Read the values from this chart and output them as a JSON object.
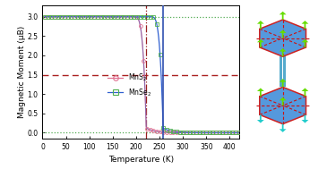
{
  "title": "",
  "xlabel": "Temperature (K)",
  "ylabel": "Magnetic Moment (μB)",
  "xlim": [
    0,
    420
  ],
  "ylim": [
    -0.15,
    3.3
  ],
  "yticks": [
    0.0,
    0.5,
    1.0,
    1.5,
    2.0,
    2.5,
    3.0
  ],
  "xticks": [
    0,
    50,
    100,
    150,
    200,
    250,
    300,
    350,
    400
  ],
  "mns2_tc": 222,
  "mnse2_tc": 258,
  "line_color_mns2": "#e07090",
  "line_color_mnse2": "#3060d0",
  "marker_color_mns2": "#e07090",
  "marker_color_mnse2": "#50b050",
  "hline_dash_color": "#aa2020",
  "hline_dot_color": "#50aa50",
  "vline_mns2_color": "#992020",
  "vline_mnse2_color": "#3050b0",
  "bg_color": "#ffffff",
  "hexagon_fill": "#5599dd",
  "hexagon_edge": "#cc2222",
  "arrow_up_color": "#66dd00",
  "arrow_down_color": "#22cccc",
  "hex_dashed_color": "#cc1111",
  "connector_color": "#55aacc"
}
